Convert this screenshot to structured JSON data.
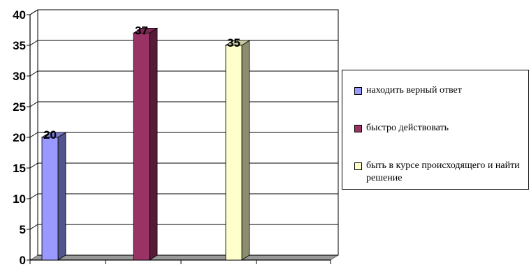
{
  "chart_data": {
    "type": "bar",
    "title": "",
    "xlabel": "",
    "ylabel": "",
    "ylim": [
      0,
      40
    ],
    "yticks": [
      0,
      5,
      10,
      15,
      20,
      25,
      30,
      35,
      40
    ],
    "grid": true,
    "legend_position": "right",
    "series": [
      {
        "name": "находить верный ответ",
        "values": [
          20
        ],
        "color": "#9999FF",
        "label": "20"
      },
      {
        "name": "быстро действовать",
        "values": [
          37
        ],
        "color": "#993366",
        "label": "37"
      },
      {
        "name": "быть в курсе происходящего и найти решение",
        "values": [
          35
        ],
        "color": "#FFFFCC",
        "label": "35"
      }
    ]
  },
  "legend": {
    "items": [
      {
        "label": "находить верный ответ",
        "color": "#9999FF"
      },
      {
        "label": "быстро действовать",
        "color": "#993366"
      },
      {
        "label": "быть в курсе происходящего и найти решение",
        "color": "#FFFFCC"
      }
    ]
  }
}
